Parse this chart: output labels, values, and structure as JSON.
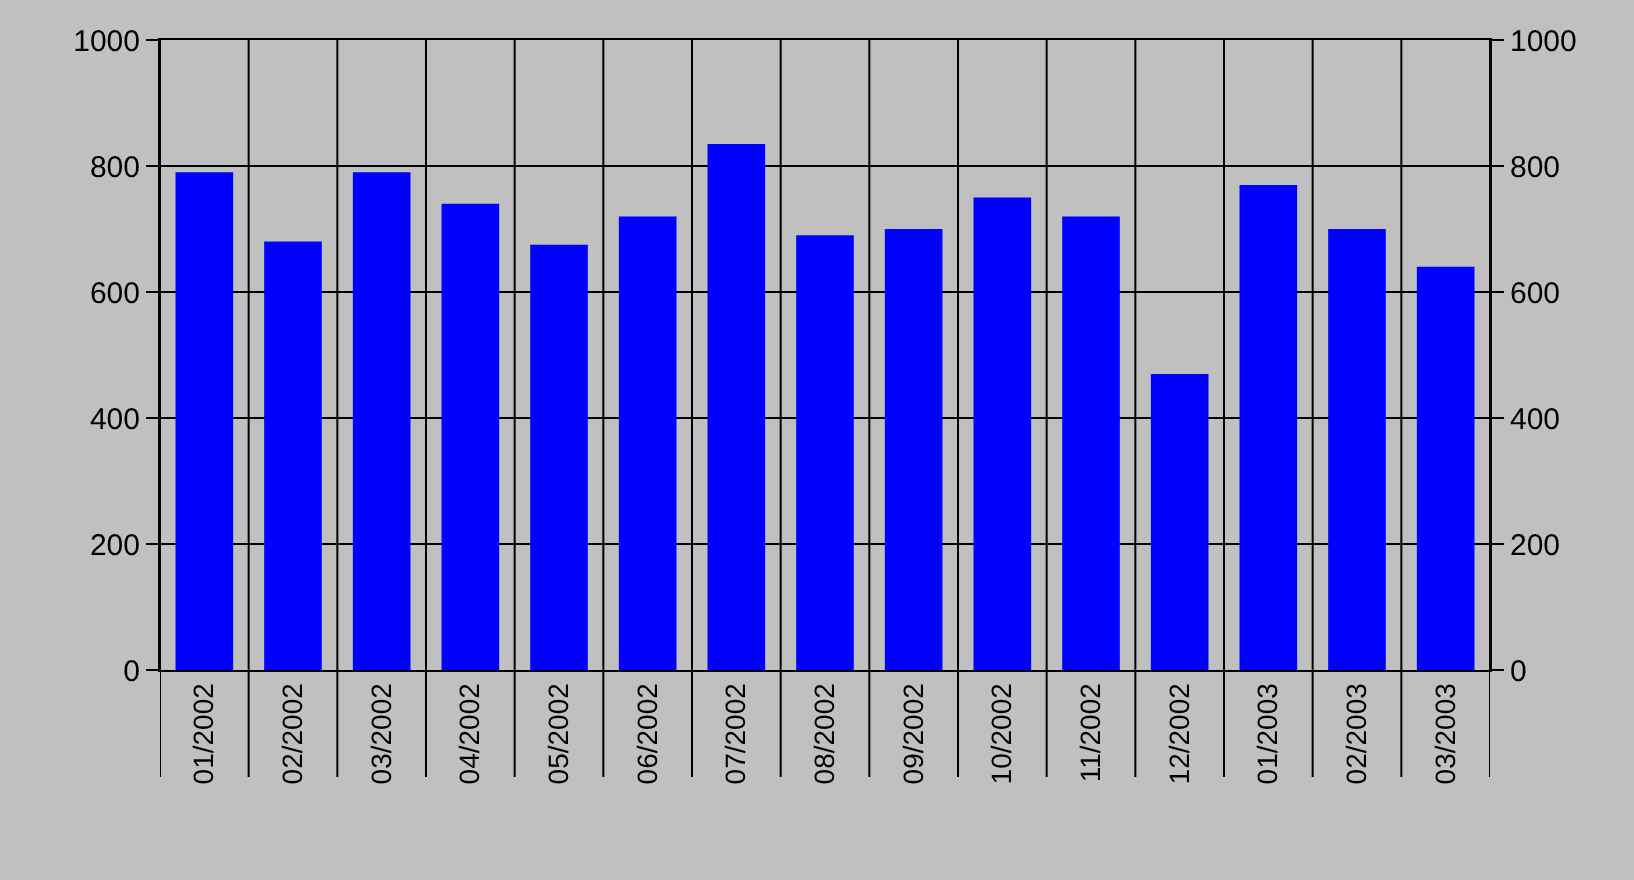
{
  "chart_data": {
    "type": "bar",
    "categories": [
      "01/2002",
      "02/2002",
      "03/2002",
      "04/2002",
      "05/2002",
      "06/2002",
      "07/2002",
      "08/2002",
      "09/2002",
      "10/2002",
      "11/2002",
      "12/2002",
      "01/2003",
      "02/2003",
      "03/2003"
    ],
    "values": [
      790,
      680,
      790,
      740,
      675,
      720,
      835,
      690,
      700,
      750,
      720,
      470,
      770,
      700,
      640
    ],
    "color": "#0000ff",
    "ylim": [
      0,
      1000
    ],
    "yticks": [
      0,
      200,
      400,
      600,
      800,
      1000
    ],
    "y2lim": [
      0,
      1000
    ],
    "y2ticks": [
      0,
      200,
      400,
      600,
      800,
      1000
    ],
    "grid": true
  }
}
